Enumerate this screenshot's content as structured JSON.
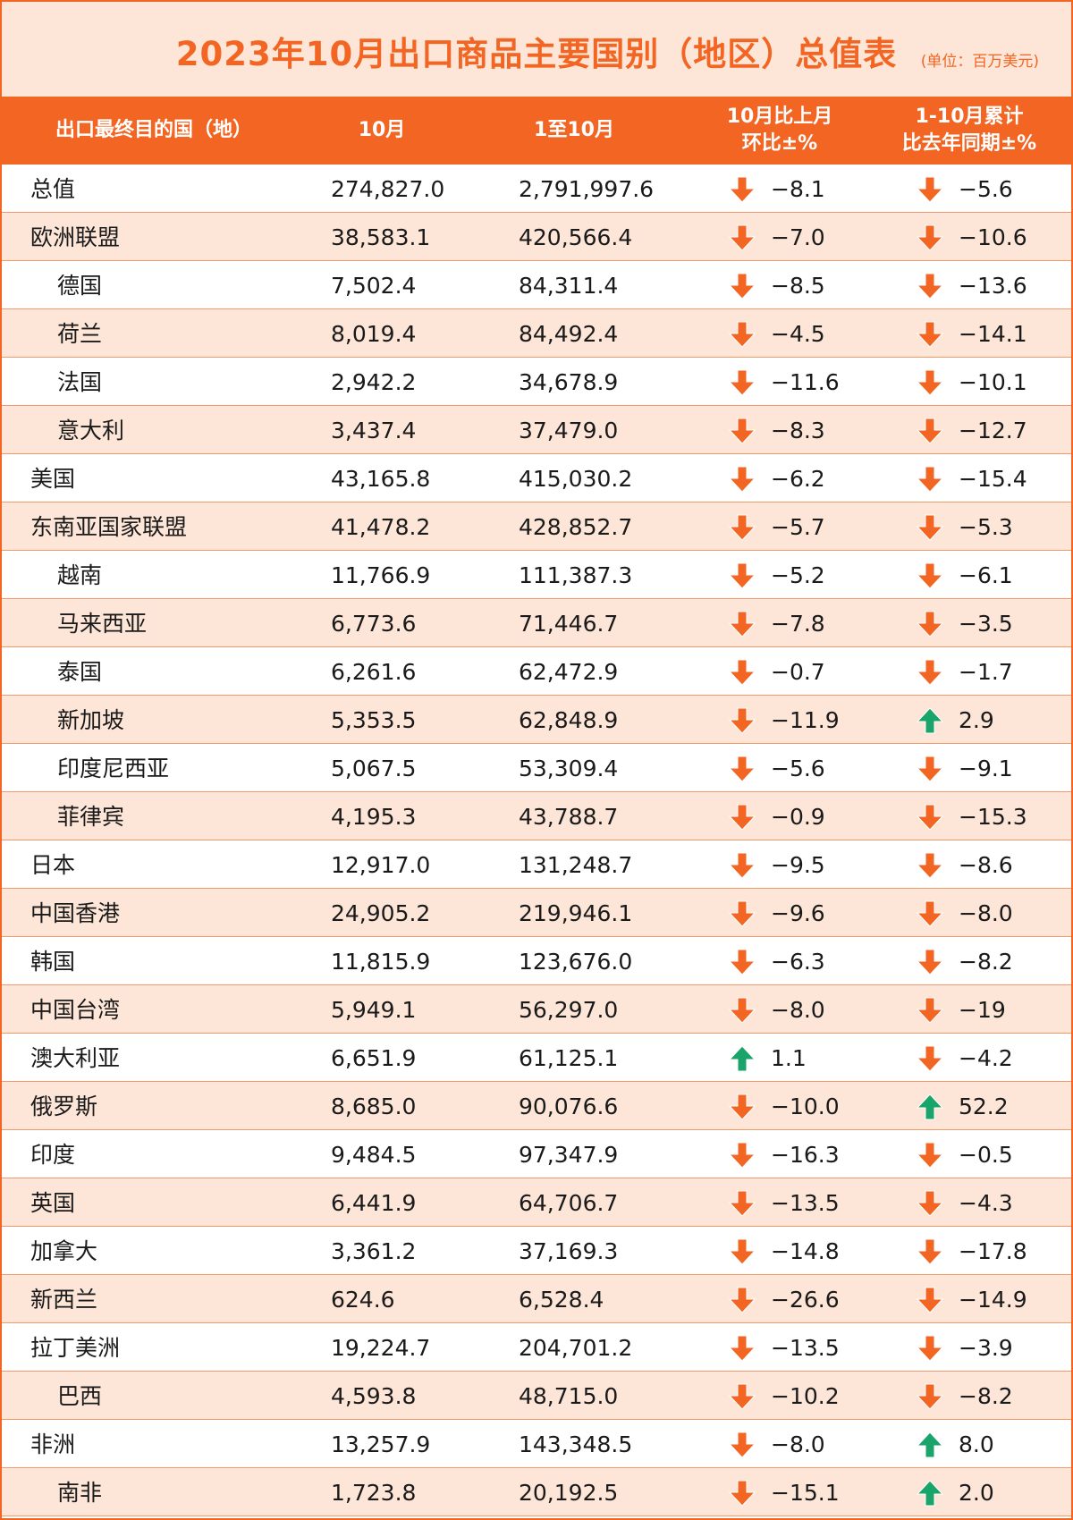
{
  "header": {
    "title": "2023年10月出口商品主要国别（地区）总值表",
    "unit": "(单位：百万美元)",
    "col_country": "出口最终目的国（地）",
    "col_oct": "10月",
    "col_ytd": "1至10月",
    "col_mom_1": "10月比上月",
    "col_mom_2": "环比±%",
    "col_yoy_1": "1-10月累计",
    "col_yoy_2": "比去年同期±%"
  },
  "colors": {
    "accent": "#f26522",
    "row_alt": "#fde6d8",
    "down": "#f26522",
    "up": "#1aa36a"
  },
  "rows": [
    {
      "name": "总值",
      "sub": false,
      "oct": "274,827.0",
      "ytd": "2,791,997.6",
      "mom": "−8.1",
      "yoy": "−5.6"
    },
    {
      "name": "欧洲联盟",
      "sub": false,
      "oct": "38,583.1",
      "ytd": "420,566.4",
      "mom": "−7.0",
      "yoy": "−10.6"
    },
    {
      "name": "德国",
      "sub": true,
      "oct": "7,502.4",
      "ytd": "84,311.4",
      "mom": "−8.5",
      "yoy": "−13.6"
    },
    {
      "name": "荷兰",
      "sub": true,
      "oct": "8,019.4",
      "ytd": "84,492.4",
      "mom": "−4.5",
      "yoy": "−14.1"
    },
    {
      "name": "法国",
      "sub": true,
      "oct": "2,942.2",
      "ytd": "34,678.9",
      "mom": "−11.6",
      "yoy": "−10.1"
    },
    {
      "name": "意大利",
      "sub": true,
      "oct": "3,437.4",
      "ytd": "37,479.0",
      "mom": "−8.3",
      "yoy": "−12.7"
    },
    {
      "name": "美国",
      "sub": false,
      "oct": "43,165.8",
      "ytd": "415,030.2",
      "mom": "−6.2",
      "yoy": "−15.4"
    },
    {
      "name": "东南亚国家联盟",
      "sub": false,
      "oct": "41,478.2",
      "ytd": "428,852.7",
      "mom": "−5.7",
      "yoy": "−5.3"
    },
    {
      "name": "越南",
      "sub": true,
      "oct": "11,766.9",
      "ytd": "111,387.3",
      "mom": "−5.2",
      "yoy": "−6.1"
    },
    {
      "name": "马来西亚",
      "sub": true,
      "oct": "6,773.6",
      "ytd": "71,446.7",
      "mom": "−7.8",
      "yoy": "−3.5"
    },
    {
      "name": "泰国",
      "sub": true,
      "oct": "6,261.6",
      "ytd": "62,472.9",
      "mom": "−0.7",
      "yoy": "−1.7"
    },
    {
      "name": "新加坡",
      "sub": true,
      "oct": "5,353.5",
      "ytd": "62,848.9",
      "mom": "−11.9",
      "yoy": "2.9"
    },
    {
      "name": "印度尼西亚",
      "sub": true,
      "oct": "5,067.5",
      "ytd": "53,309.4",
      "mom": "−5.6",
      "yoy": "−9.1"
    },
    {
      "name": "菲律宾",
      "sub": true,
      "oct": "4,195.3",
      "ytd": "43,788.7",
      "mom": "−0.9",
      "yoy": "−15.3"
    },
    {
      "name": "日本",
      "sub": false,
      "oct": "12,917.0",
      "ytd": "131,248.7",
      "mom": "−9.5",
      "yoy": "−8.6"
    },
    {
      "name": "中国香港",
      "sub": false,
      "oct": "24,905.2",
      "ytd": "219,946.1",
      "mom": "−9.6",
      "yoy": "−8.0"
    },
    {
      "name": "韩国",
      "sub": false,
      "oct": "11,815.9",
      "ytd": "123,676.0",
      "mom": "−6.3",
      "yoy": "−8.2"
    },
    {
      "name": "中国台湾",
      "sub": false,
      "oct": "5,949.1",
      "ytd": "56,297.0",
      "mom": "−8.0",
      "yoy": "−19"
    },
    {
      "name": "澳大利亚",
      "sub": false,
      "oct": "6,651.9",
      "ytd": "61,125.1",
      "mom": "1.1",
      "yoy": "−4.2"
    },
    {
      "name": "俄罗斯",
      "sub": false,
      "oct": "8,685.0",
      "ytd": "90,076.6",
      "mom": "−10.0",
      "yoy": "52.2"
    },
    {
      "name": "印度",
      "sub": false,
      "oct": "9,484.5",
      "ytd": "97,347.9",
      "mom": "−16.3",
      "yoy": "−0.5"
    },
    {
      "name": "英国",
      "sub": false,
      "oct": "6,441.9",
      "ytd": "64,706.7",
      "mom": "−13.5",
      "yoy": "−4.3"
    },
    {
      "name": "加拿大",
      "sub": false,
      "oct": "3,361.2",
      "ytd": "37,169.3",
      "mom": "−14.8",
      "yoy": "−17.8"
    },
    {
      "name": "新西兰",
      "sub": false,
      "oct": "624.6",
      "ytd": "6,528.4",
      "mom": "−26.6",
      "yoy": "−14.9"
    },
    {
      "name": "拉丁美洲",
      "sub": false,
      "oct": "19,224.7",
      "ytd": "204,701.2",
      "mom": "−13.5",
      "yoy": "−3.9"
    },
    {
      "name": "巴西",
      "sub": true,
      "oct": "4,593.8",
      "ytd": "48,715.0",
      "mom": "−10.2",
      "yoy": "−8.2"
    },
    {
      "name": "非洲",
      "sub": false,
      "oct": "13,257.9",
      "ytd": "143,348.5",
      "mom": "−8.0",
      "yoy": "8.0"
    },
    {
      "name": "南非",
      "sub": true,
      "oct": "1,723.8",
      "ytd": "20,192.5",
      "mom": "−15.1",
      "yoy": "2.0"
    }
  ]
}
